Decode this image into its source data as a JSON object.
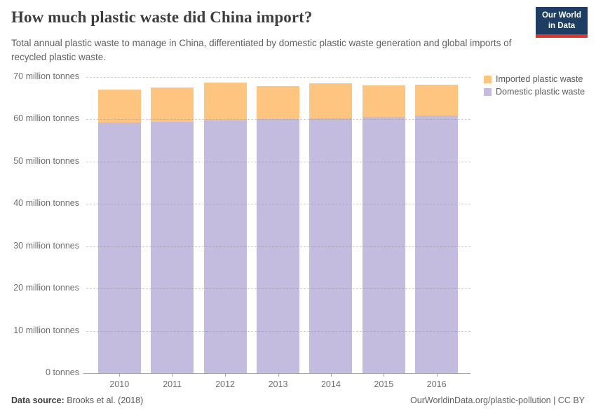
{
  "header": {
    "title": "How much plastic waste did China import?",
    "subtitle": "Total annual plastic waste to manage in China, differentiated by domestic plastic waste generation and global imports of recycled plastic waste.",
    "logo": {
      "line1": "Our World",
      "line2": "in Data",
      "bg_color": "#1d3d63",
      "accent_color": "#dc352c"
    }
  },
  "chart_data": {
    "type": "bar",
    "stacked": true,
    "title": "How much plastic waste did China import?",
    "unit": "million tonnes",
    "categories": [
      "2010",
      "2011",
      "2012",
      "2013",
      "2014",
      "2015",
      "2016"
    ],
    "series": [
      {
        "name": "Imported plastic waste",
        "color": "#fdc57f",
        "values": [
          7.9,
          8.2,
          8.9,
          7.8,
          8.3,
          7.4,
          7.3
        ]
      },
      {
        "name": "Domestic plastic waste",
        "color": "#c3bcdf",
        "values": [
          59.2,
          59.4,
          59.7,
          60.0,
          60.2,
          60.6,
          60.9
        ]
      }
    ],
    "stack_bottom_to_top": [
      "Domestic plastic waste",
      "Imported plastic waste"
    ],
    "ylim": [
      0,
      70
    ],
    "ytick_step": 10,
    "yticks": [
      {
        "value": 70,
        "label": "70 million tonnes"
      },
      {
        "value": 60,
        "label": "60 million tonnes"
      },
      {
        "value": 50,
        "label": "50 million tonnes"
      },
      {
        "value": 40,
        "label": "40 million tonnes"
      },
      {
        "value": 30,
        "label": "30 million tonnes"
      },
      {
        "value": 20,
        "label": "20 million tonnes"
      },
      {
        "value": 10,
        "label": "10 million tonnes"
      },
      {
        "value": 0,
        "label": "0 tonnes"
      }
    ],
    "grid": "horizontal-dashed",
    "legend_position": "top-right"
  },
  "footer": {
    "source_label": "Data source:",
    "source_value": "Brooks et al. (2018)",
    "link": "OurWorldinData.org/plastic-pollution | CC BY"
  }
}
